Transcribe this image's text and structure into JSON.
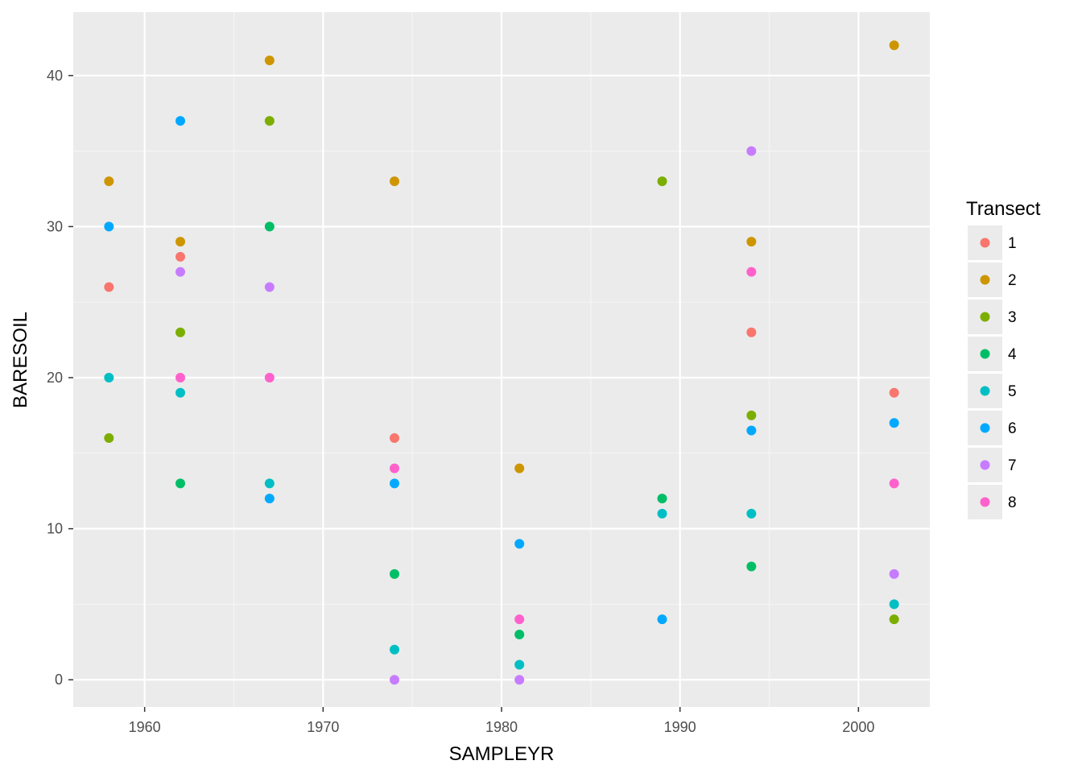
{
  "chart_data": {
    "type": "scatter",
    "xlabel": "SAMPLEYR",
    "ylabel": "BARESOIL",
    "xlim": [
      1956,
      2004
    ],
    "ylim": [
      -1.8,
      44.2
    ],
    "x_ticks": [
      1960,
      1970,
      1980,
      1990,
      2000
    ],
    "y_ticks": [
      0,
      10,
      20,
      30,
      40
    ],
    "grid": true,
    "legend": {
      "title": "Transect",
      "position": "right"
    },
    "series": [
      {
        "name": "1",
        "color": "#F8766D",
        "points": [
          [
            1958,
            26
          ],
          [
            1962,
            28
          ],
          [
            1974,
            16
          ],
          [
            1994,
            23
          ],
          [
            2002,
            19
          ]
        ]
      },
      {
        "name": "2",
        "color": "#CD9600",
        "points": [
          [
            1958,
            33
          ],
          [
            1962,
            29
          ],
          [
            1967,
            41
          ],
          [
            1974,
            33
          ],
          [
            1981,
            14
          ],
          [
            1994,
            29
          ],
          [
            2002,
            42
          ]
        ]
      },
      {
        "name": "3",
        "color": "#7CAE00",
        "points": [
          [
            1958,
            16
          ],
          [
            1962,
            23
          ],
          [
            1967,
            37
          ],
          [
            1989,
            33
          ],
          [
            1994,
            17.5
          ],
          [
            2002,
            4
          ]
        ]
      },
      {
        "name": "4",
        "color": "#00BE67",
        "points": [
          [
            1962,
            13
          ],
          [
            1967,
            30
          ],
          [
            1974,
            7
          ],
          [
            1981,
            3
          ],
          [
            1989,
            12
          ],
          [
            1994,
            7.5
          ]
        ]
      },
      {
        "name": "5",
        "color": "#00BFC4",
        "points": [
          [
            1958,
            20
          ],
          [
            1962,
            19
          ],
          [
            1967,
            13
          ],
          [
            1974,
            2
          ],
          [
            1981,
            1
          ],
          [
            1989,
            11
          ],
          [
            1994,
            11
          ],
          [
            2002,
            5
          ]
        ]
      },
      {
        "name": "6",
        "color": "#00A9FF",
        "points": [
          [
            1958,
            30
          ],
          [
            1962,
            37
          ],
          [
            1967,
            12
          ],
          [
            1974,
            13
          ],
          [
            1981,
            9
          ],
          [
            1989,
            4
          ],
          [
            1994,
            16.5
          ],
          [
            2002,
            17
          ]
        ]
      },
      {
        "name": "7",
        "color": "#C77CFF",
        "points": [
          [
            1962,
            27
          ],
          [
            1967,
            26
          ],
          [
            1974,
            0
          ],
          [
            1981,
            0
          ],
          [
            1994,
            35
          ],
          [
            2002,
            7
          ]
        ]
      },
      {
        "name": "8",
        "color": "#FF61CC",
        "points": [
          [
            1962,
            20
          ],
          [
            1967,
            20
          ],
          [
            1974,
            14
          ],
          [
            1981,
            4
          ],
          [
            1994,
            27
          ],
          [
            2002,
            13
          ]
        ]
      }
    ]
  }
}
